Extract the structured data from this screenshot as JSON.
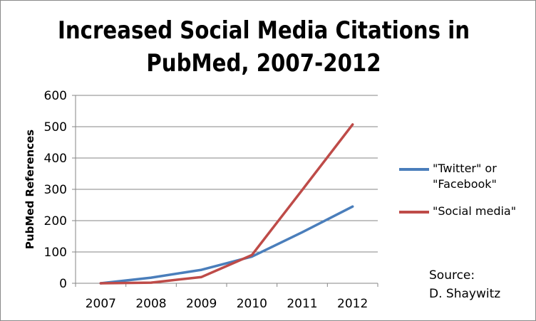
{
  "chart_data": {
    "type": "line",
    "title_lines": [
      "Increased Social Media Citations in",
      "PubMed, 2007-2012"
    ],
    "ylabel": "PubMed References",
    "xlabel": "",
    "categories": [
      "2007",
      "2008",
      "2009",
      "2010",
      "2011",
      "2012"
    ],
    "ylim": [
      0,
      600
    ],
    "yticks": [
      0,
      100,
      200,
      300,
      400,
      500,
      600
    ],
    "grid": true,
    "legend_position": "right",
    "series": [
      {
        "name": "\"Twitter\" or \"Facebook\"",
        "legend_lines": [
          "\"Twitter\" or",
          "\"Facebook\""
        ],
        "color": "#4a7ebb",
        "values": [
          0,
          18,
          43,
          85,
          163,
          245
        ]
      },
      {
        "name": "\"Social media\"",
        "legend_lines": [
          "\"Social media\""
        ],
        "color": "#be4b48",
        "values": [
          0,
          2,
          20,
          90,
          298,
          507
        ]
      }
    ]
  },
  "source": {
    "line1": "Source:",
    "line2": "D. Shaywitz"
  }
}
